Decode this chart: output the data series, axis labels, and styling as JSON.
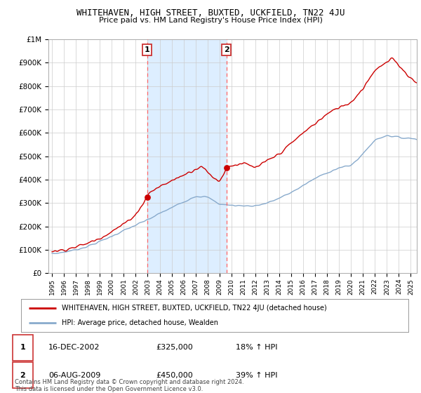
{
  "title": "WHITEHAVEN, HIGH STREET, BUXTED, UCKFIELD, TN22 4JU",
  "subtitle": "Price paid vs. HM Land Registry's House Price Index (HPI)",
  "ylabel_ticks": [
    "£0",
    "£100K",
    "£200K",
    "£300K",
    "£400K",
    "£500K",
    "£600K",
    "£700K",
    "£800K",
    "£900K",
    "£1M"
  ],
  "ytick_values": [
    0,
    100000,
    200000,
    300000,
    400000,
    500000,
    600000,
    700000,
    800000,
    900000,
    1000000
  ],
  "ylim": [
    0,
    1000000
  ],
  "xlim_start": 1994.7,
  "xlim_end": 2025.5,
  "transaction1_x": 2002.958,
  "transaction1_y": 325000,
  "transaction1_label": "1",
  "transaction1_date": "16-DEC-2002",
  "transaction1_price": "£325,000",
  "transaction1_hpi": "18% ↑ HPI",
  "transaction2_x": 2009.583,
  "transaction2_y": 450000,
  "transaction2_label": "2",
  "transaction2_date": "06-AUG-2009",
  "transaction2_price": "£450,000",
  "transaction2_hpi": "39% ↑ HPI",
  "shade_color": "#ddeeff",
  "vline_color": "#ff6666",
  "house_line_color": "#cc0000",
  "hpi_line_color": "#88aacc",
  "legend_house_label": "WHITEHAVEN, HIGH STREET, BUXTED, UCKFIELD, TN22 4JU (detached house)",
  "legend_hpi_label": "HPI: Average price, detached house, Wealden",
  "footer": "Contains HM Land Registry data © Crown copyright and database right 2024.\nThis data is licensed under the Open Government Licence v3.0.",
  "xtick_years": [
    1995,
    1996,
    1997,
    1998,
    1999,
    2000,
    2001,
    2002,
    2003,
    2004,
    2005,
    2006,
    2007,
    2008,
    2009,
    2010,
    2011,
    2012,
    2013,
    2014,
    2015,
    2016,
    2017,
    2018,
    2019,
    2020,
    2021,
    2022,
    2023,
    2024,
    2025
  ],
  "bg_color": "#ffffff",
  "plot_bg_color": "#ffffff",
  "grid_color": "#cccccc"
}
